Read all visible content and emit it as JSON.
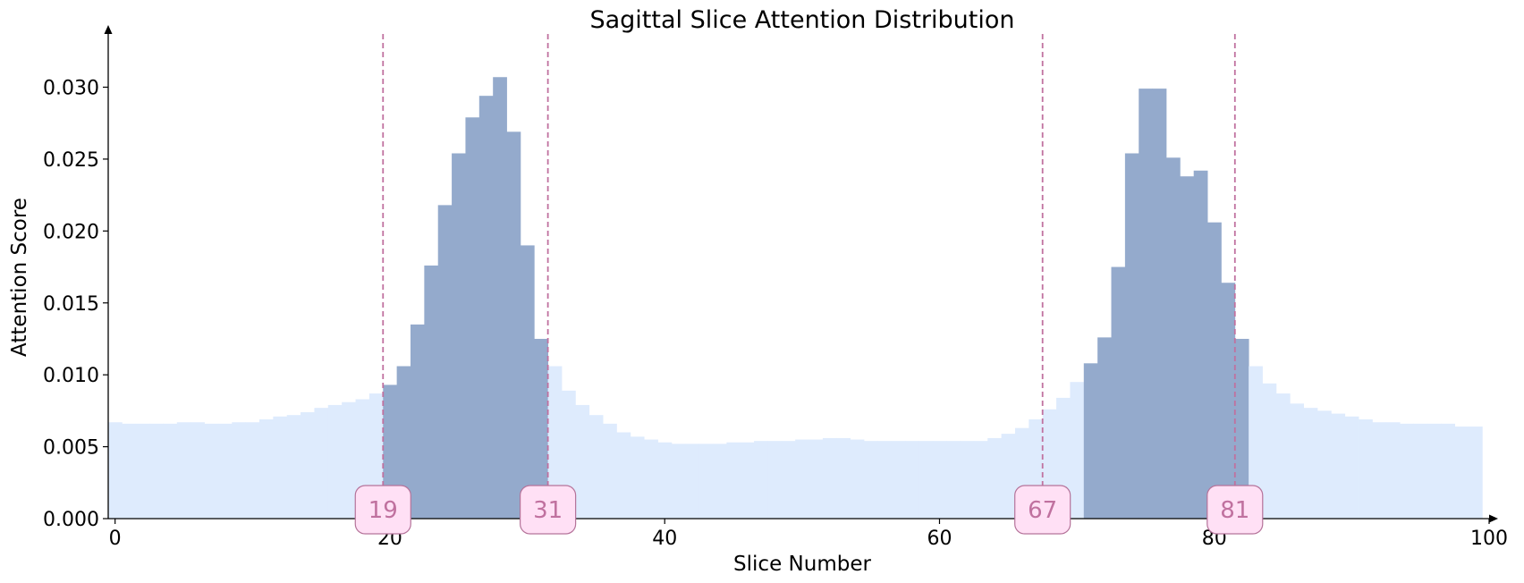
{
  "chart_data": {
    "type": "bar",
    "title": "Sagittal Slice Attention Distribution",
    "xlabel": "Slice Number",
    "ylabel": "Attention Score",
    "xlim": [
      -0.5,
      100
    ],
    "ylim": [
      0,
      0.0337
    ],
    "xticks": [
      0,
      20,
      40,
      60,
      80,
      100
    ],
    "yticks": [
      0.0,
      0.005,
      0.01,
      0.015,
      0.02,
      0.025,
      0.03
    ],
    "ytick_labels": [
      "0.000",
      "0.005",
      "0.010",
      "0.015",
      "0.020",
      "0.025",
      "0.030"
    ],
    "grid": false,
    "x": [
      0,
      1,
      2,
      3,
      4,
      5,
      6,
      7,
      8,
      9,
      10,
      11,
      12,
      13,
      14,
      15,
      16,
      17,
      18,
      19,
      20,
      21,
      22,
      23,
      24,
      25,
      26,
      27,
      28,
      29,
      30,
      31,
      32,
      33,
      34,
      35,
      36,
      37,
      38,
      39,
      40,
      41,
      42,
      43,
      44,
      45,
      46,
      47,
      48,
      49,
      50,
      51,
      52,
      53,
      54,
      55,
      56,
      57,
      58,
      59,
      60,
      61,
      62,
      63,
      64,
      65,
      66,
      67,
      68,
      69,
      70,
      71,
      72,
      73,
      74,
      75,
      76,
      77,
      78,
      79,
      80,
      81,
      82,
      83,
      84,
      85,
      86,
      87,
      88,
      89,
      90,
      91,
      92,
      93,
      94,
      95,
      96,
      97,
      98,
      99
    ],
    "values": [
      0.0067,
      0.0066,
      0.0066,
      0.0066,
      0.0066,
      0.0067,
      0.0067,
      0.0066,
      0.0066,
      0.0067,
      0.0067,
      0.0069,
      0.0071,
      0.0072,
      0.0074,
      0.0077,
      0.0079,
      0.0081,
      0.0083,
      0.0087,
      0.0093,
      0.0106,
      0.0135,
      0.0176,
      0.0218,
      0.0254,
      0.0279,
      0.0294,
      0.0307,
      0.0269,
      0.019,
      0.0125,
      0.0106,
      0.0089,
      0.0079,
      0.0072,
      0.0066,
      0.006,
      0.0057,
      0.0055,
      0.0053,
      0.0052,
      0.0052,
      0.0052,
      0.0052,
      0.0053,
      0.0053,
      0.0054,
      0.0054,
      0.0054,
      0.0055,
      0.0055,
      0.0056,
      0.0056,
      0.0055,
      0.0054,
      0.0054,
      0.0054,
      0.0054,
      0.0054,
      0.0054,
      0.0054,
      0.0054,
      0.0054,
      0.0056,
      0.0059,
      0.0063,
      0.0069,
      0.0076,
      0.0084,
      0.0095,
      0.0108,
      0.0126,
      0.0175,
      0.0254,
      0.0299,
      0.0299,
      0.0251,
      0.0238,
      0.0242,
      0.0206,
      0.0164,
      0.0125,
      0.0106,
      0.0094,
      0.0087,
      0.008,
      0.0077,
      0.0075,
      0.0073,
      0.0071,
      0.0069,
      0.0067,
      0.0067,
      0.0066,
      0.0066,
      0.0066,
      0.0066,
      0.0064,
      0.0064
    ],
    "highlight_regions": [
      [
        20,
        31
      ],
      [
        71,
        82
      ]
    ],
    "markers": [
      {
        "x": 20,
        "label": "19"
      },
      {
        "x": 32,
        "label": "31"
      },
      {
        "x": 68,
        "label": "67"
      },
      {
        "x": 82,
        "label": "81"
      }
    ],
    "colors": {
      "bar_base": "#deebfd",
      "bar_highlight": "#94aacc",
      "marker_line": "#c0719f",
      "badge_fill": "#ffe0f5",
      "badge_stroke": "#b5739a",
      "badge_text": "#c0719f"
    }
  }
}
